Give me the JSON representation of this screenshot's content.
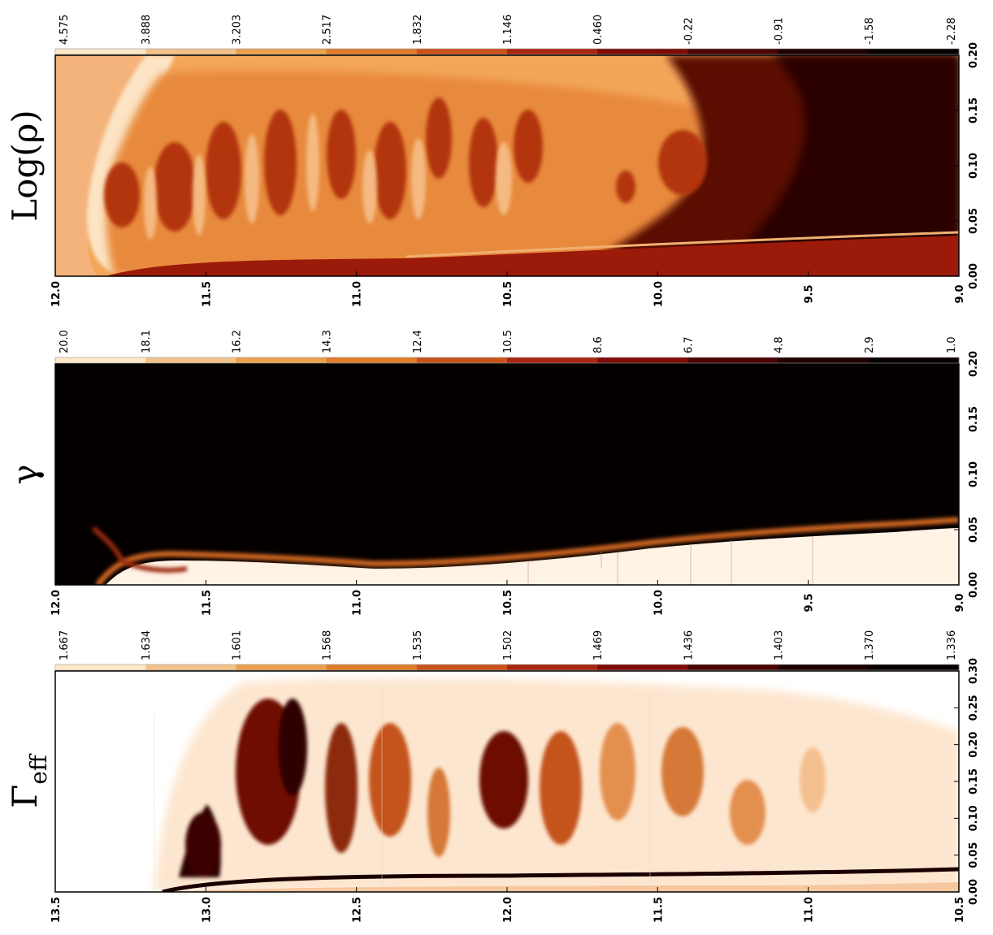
{
  "figure": {
    "panels": [
      {
        "id": "log-rho",
        "title": "Log(ρ)",
        "colorbar_ticks": [
          "4.575",
          "3.888",
          "3.203",
          "2.517",
          "1.832",
          "1.146",
          "0.460",
          "-0.22",
          "-0.91",
          "-1.58",
          "-2.28"
        ],
        "horizontal_ticks": [
          "0.00",
          "0.05",
          "0.10",
          "0.15",
          "0.20"
        ],
        "vertical_ticks": [
          "12.0",
          "11.5",
          "11.0",
          "10.5",
          "10.0",
          "9.5",
          "9.0"
        ],
        "colormap": "hot-inverted",
        "colors": [
          "#fce8c8",
          "#f2c28a",
          "#eba04e",
          "#e07c2a",
          "#c9531a",
          "#a92710",
          "#7e0b06",
          "#4a0403",
          "#200101",
          "#080000"
        ]
      },
      {
        "id": "gamma",
        "title": "γ",
        "colorbar_ticks": [
          "20.0",
          "18.1",
          "16.2",
          "14.3",
          "12.4",
          "10.5",
          "8.6",
          "6.7",
          "4.8",
          "2.9",
          "1.0"
        ],
        "horizontal_ticks": [
          "0.00",
          "0.05",
          "0.10",
          "0.15",
          "0.20"
        ],
        "vertical_ticks": [
          "12.0",
          "11.5",
          "11.0",
          "10.5",
          "10.0",
          "9.5",
          "9.0"
        ],
        "colormap": "hot-inverted"
      },
      {
        "id": "gamma-eff",
        "title": "Γeff",
        "title_main": "Γ",
        "title_sub": "eff",
        "colorbar_ticks": [
          "1.667",
          "1.634",
          "1.601",
          "1.568",
          "1.535",
          "1.502",
          "1.469",
          "1.436",
          "1.403",
          "1.370",
          "1.336"
        ],
        "horizontal_ticks": [
          "0.00",
          "0.05",
          "0.10",
          "0.15",
          "0.20",
          "0.25",
          "0.30"
        ],
        "vertical_ticks": [
          "13.5",
          "13.0",
          "12.5",
          "12.0",
          "11.5",
          "11.0",
          "10.5"
        ],
        "colormap": "hot-inverted"
      }
    ]
  }
}
